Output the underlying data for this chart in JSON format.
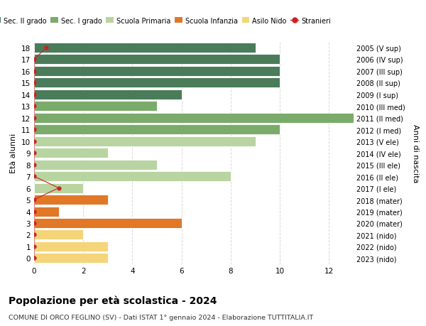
{
  "ages": [
    18,
    17,
    16,
    15,
    14,
    13,
    12,
    11,
    10,
    9,
    8,
    7,
    6,
    5,
    4,
    3,
    2,
    1,
    0
  ],
  "years": [
    "2005 (V sup)",
    "2006 (IV sup)",
    "2007 (III sup)",
    "2008 (II sup)",
    "2009 (I sup)",
    "2010 (III med)",
    "2011 (II med)",
    "2012 (I med)",
    "2013 (V ele)",
    "2014 (IV ele)",
    "2015 (III ele)",
    "2016 (II ele)",
    "2017 (I ele)",
    "2018 (mater)",
    "2019 (mater)",
    "2020 (mater)",
    "2021 (nido)",
    "2022 (nido)",
    "2023 (nido)"
  ],
  "bar_values": [
    9,
    10,
    10,
    10,
    6,
    5,
    13,
    10,
    9,
    3,
    5,
    8,
    2,
    3,
    1,
    6,
    2,
    3,
    3
  ],
  "bar_colors": [
    "#4a7c59",
    "#4a7c59",
    "#4a7c59",
    "#4a7c59",
    "#4a7c59",
    "#7aab6a",
    "#7aab6a",
    "#7aab6a",
    "#b8d4a0",
    "#b8d4a0",
    "#b8d4a0",
    "#b8d4a0",
    "#b8d4a0",
    "#e07828",
    "#e07828",
    "#e07828",
    "#f5d57a",
    "#f5d57a",
    "#f5d57a"
  ],
  "stranieri_x": [
    0.5,
    0.0,
    0.0,
    0.0,
    0.0,
    0.0,
    0.0,
    0.0,
    0.0,
    0.0,
    0.0,
    0.0,
    1.0,
    0.0,
    0.0,
    0.0,
    0.0,
    0.0,
    0.0
  ],
  "legend_labels": [
    "Sec. II grado",
    "Sec. I grado",
    "Scuola Primaria",
    "Scuola Infanzia",
    "Asilo Nido",
    "Stranieri"
  ],
  "legend_colors": [
    "#4a7c59",
    "#7aab6a",
    "#b8d4a0",
    "#e07828",
    "#f5d57a",
    "#cc2222"
  ],
  "left_ylabel": "Età alunni",
  "right_ylabel": "Anni di nascita",
  "title": "Popolazione per età scolastica - 2024",
  "subtitle": "COMUNE DI ORCO FEGLINO (SV) - Dati ISTAT 1° gennaio 2024 - Elaborazione TUTTITALIA.IT",
  "xlim": [
    0,
    13
  ],
  "xticks": [
    0,
    2,
    4,
    6,
    8,
    10,
    12
  ],
  "background_color": "#ffffff",
  "grid_color": "#d8d8d8"
}
